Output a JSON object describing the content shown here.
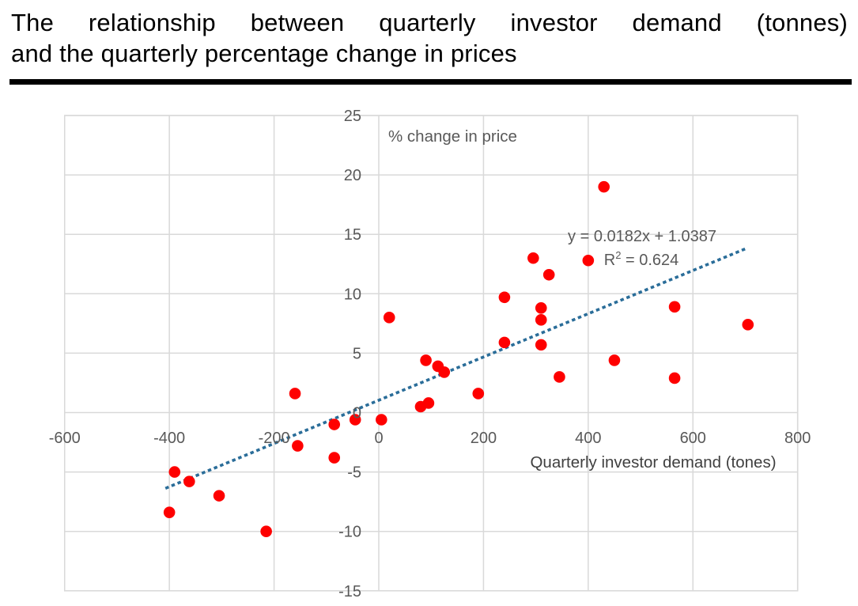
{
  "title": {
    "line1": "The relationship between quarterly investor demand (tonnes)",
    "line2": "and the quarterly percentage change in prices"
  },
  "chart_data": {
    "type": "scatter",
    "title": "",
    "xlabel": "Quarterly investor demand (tones)",
    "ylabel": "% change in price",
    "xlim": [
      -600,
      800
    ],
    "ylim": [
      -15,
      25
    ],
    "xticks": [
      -600,
      -400,
      -200,
      0,
      200,
      400,
      600,
      800
    ],
    "yticks": [
      25,
      20,
      15,
      10,
      5,
      0,
      -5,
      -10,
      -15
    ],
    "grid": true,
    "legend_position": "none",
    "points": [
      [
        -400,
        -8.4
      ],
      [
        -390,
        -5.0
      ],
      [
        -362,
        -5.8
      ],
      [
        -305,
        -7.0
      ],
      [
        -215,
        -10.0
      ],
      [
        -160,
        1.6
      ],
      [
        -155,
        -2.8
      ],
      [
        -85,
        -1.0
      ],
      [
        -85,
        -3.8
      ],
      [
        -45,
        -0.6
      ],
      [
        5,
        -0.6
      ],
      [
        20,
        8.0
      ],
      [
        80,
        0.5
      ],
      [
        95,
        0.8
      ],
      [
        90,
        4.4
      ],
      [
        113,
        3.9
      ],
      [
        125,
        3.4
      ],
      [
        190,
        1.6
      ],
      [
        240,
        5.9
      ],
      [
        240,
        9.7
      ],
      [
        295,
        13.0
      ],
      [
        310,
        8.8
      ],
      [
        310,
        7.8
      ],
      [
        310,
        5.7
      ],
      [
        325,
        11.6
      ],
      [
        345,
        3.0
      ],
      [
        400,
        12.8
      ],
      [
        430,
        19.0
      ],
      [
        450,
        4.4
      ],
      [
        565,
        8.9
      ],
      [
        565,
        2.9
      ],
      [
        705,
        7.4
      ]
    ],
    "trendline": {
      "equation_label": "y = 0.0182x + 1.0387",
      "r2_base": "R",
      "r2_sup": "2",
      "r2_rest": " = 0.624",
      "slope": 0.0182,
      "intercept": 1.0387,
      "x_start": -405,
      "x_end": 700,
      "style": "dotted"
    },
    "colors": {
      "point": "#fe0000",
      "trendline": "#2a6d99",
      "grid": "#d9d9d9",
      "tick_text": "#595959",
      "axis_title_y": "#595959",
      "axis_title_x": "#404040",
      "equation_text": "#595959",
      "title_text": "#000000",
      "rule": "#000000"
    }
  }
}
